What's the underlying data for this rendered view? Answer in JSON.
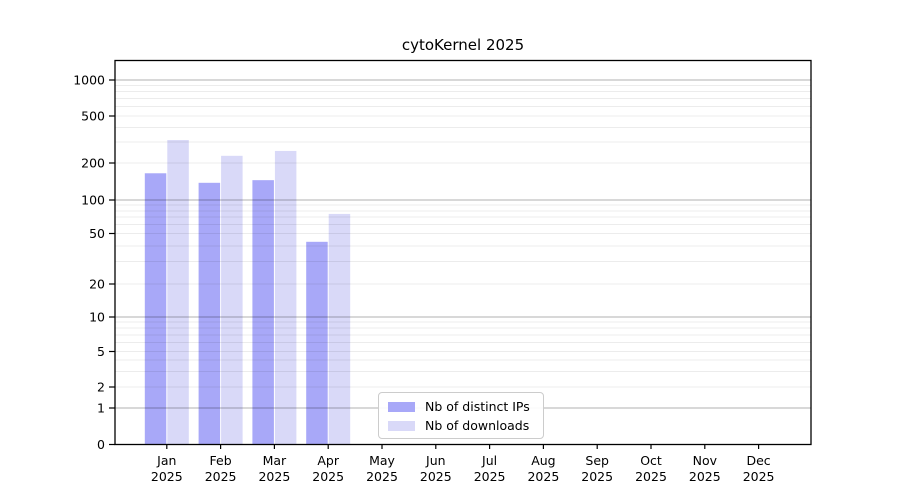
{
  "title": "cytoKernel 2025",
  "chart_data": {
    "type": "bar",
    "title": "cytoKernel 2025",
    "categories": [
      "Jan 2025",
      "Feb 2025",
      "Mar 2025",
      "Apr 2025",
      "May 2025",
      "Jun 2025",
      "Jul 2025",
      "Aug 2025",
      "Sep 2025",
      "Oct 2025",
      "Nov 2025",
      "Dec 2025"
    ],
    "month_labels": [
      "Jan",
      "Feb",
      "Mar",
      "Apr",
      "May",
      "Jun",
      "Jul",
      "Aug",
      "Sep",
      "Oct",
      "Nov",
      "Dec"
    ],
    "year_label": "2025",
    "series": [
      {
        "name": "Nb of distinct IPs",
        "color": "#a8a8f8",
        "values": [
          165,
          138,
          145,
          43,
          null,
          null,
          null,
          null,
          null,
          null,
          null,
          null
        ]
      },
      {
        "name": "Nb of downloads",
        "color": "#d9d9f8",
        "values": [
          313,
          230,
          253,
          75,
          null,
          null,
          null,
          null,
          null,
          null,
          null,
          null
        ]
      }
    ],
    "yscale": "log-like",
    "yticks": [
      0,
      1,
      2,
      5,
      10,
      20,
      50,
      100,
      200,
      500,
      1000
    ],
    "ytick_labels": [
      "0",
      "1",
      "2",
      "5",
      "10",
      "20",
      "50",
      "100",
      "200",
      "500",
      "1000"
    ],
    "ylim": [
      0,
      1000
    ],
    "grid": true,
    "legend_position": "bottom-center",
    "colors": {
      "axis": "#000000",
      "major_grid": "#b3b3b3",
      "minor_grid": "#ebebeb",
      "text": "#000000"
    }
  },
  "legend": {
    "items": [
      {
        "label": "Nb of distinct IPs"
      },
      {
        "label": "Nb of downloads"
      }
    ]
  }
}
